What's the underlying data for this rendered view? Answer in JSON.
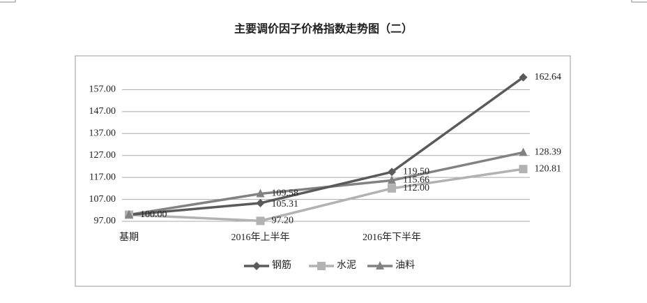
{
  "chart_data": {
    "type": "line",
    "title": "主要调价因子价格指数走势图（二）",
    "categories": [
      "基期",
      "2016年上半年",
      "2016年下半年",
      null
    ],
    "series": [
      {
        "name": "钢筋",
        "color": "#5a5a5a",
        "marker": "diamond",
        "values": [
          100.0,
          105.31,
          119.5,
          162.64
        ],
        "value_labels": [
          "100.00",
          "105.31",
          "119.50",
          "162.64"
        ]
      },
      {
        "name": "水泥",
        "color": "#b2b2b2",
        "marker": "square",
        "values": [
          100.0,
          97.2,
          112.0,
          120.81
        ],
        "value_labels": [
          null,
          "97.20",
          "112.00",
          "120.81"
        ]
      },
      {
        "name": "油料",
        "color": "#828282",
        "marker": "triangle",
        "values": [
          100.0,
          109.58,
          115.66,
          128.39
        ],
        "value_labels": [
          null,
          "109.58",
          "115.66",
          "128.39"
        ]
      }
    ],
    "ylim": [
      97,
      167
    ],
    "yticks": [
      {
        "value": 97,
        "label": "97.00"
      },
      {
        "value": 107,
        "label": "107.00"
      },
      {
        "value": 117,
        "label": "117.00"
      },
      {
        "value": 127,
        "label": "127.00"
      },
      {
        "value": 137,
        "label": "137.00"
      },
      {
        "value": 147,
        "label": "147.00"
      },
      {
        "value": 157,
        "label": "157.00"
      }
    ],
    "grid": true,
    "legend": "bottom"
  }
}
